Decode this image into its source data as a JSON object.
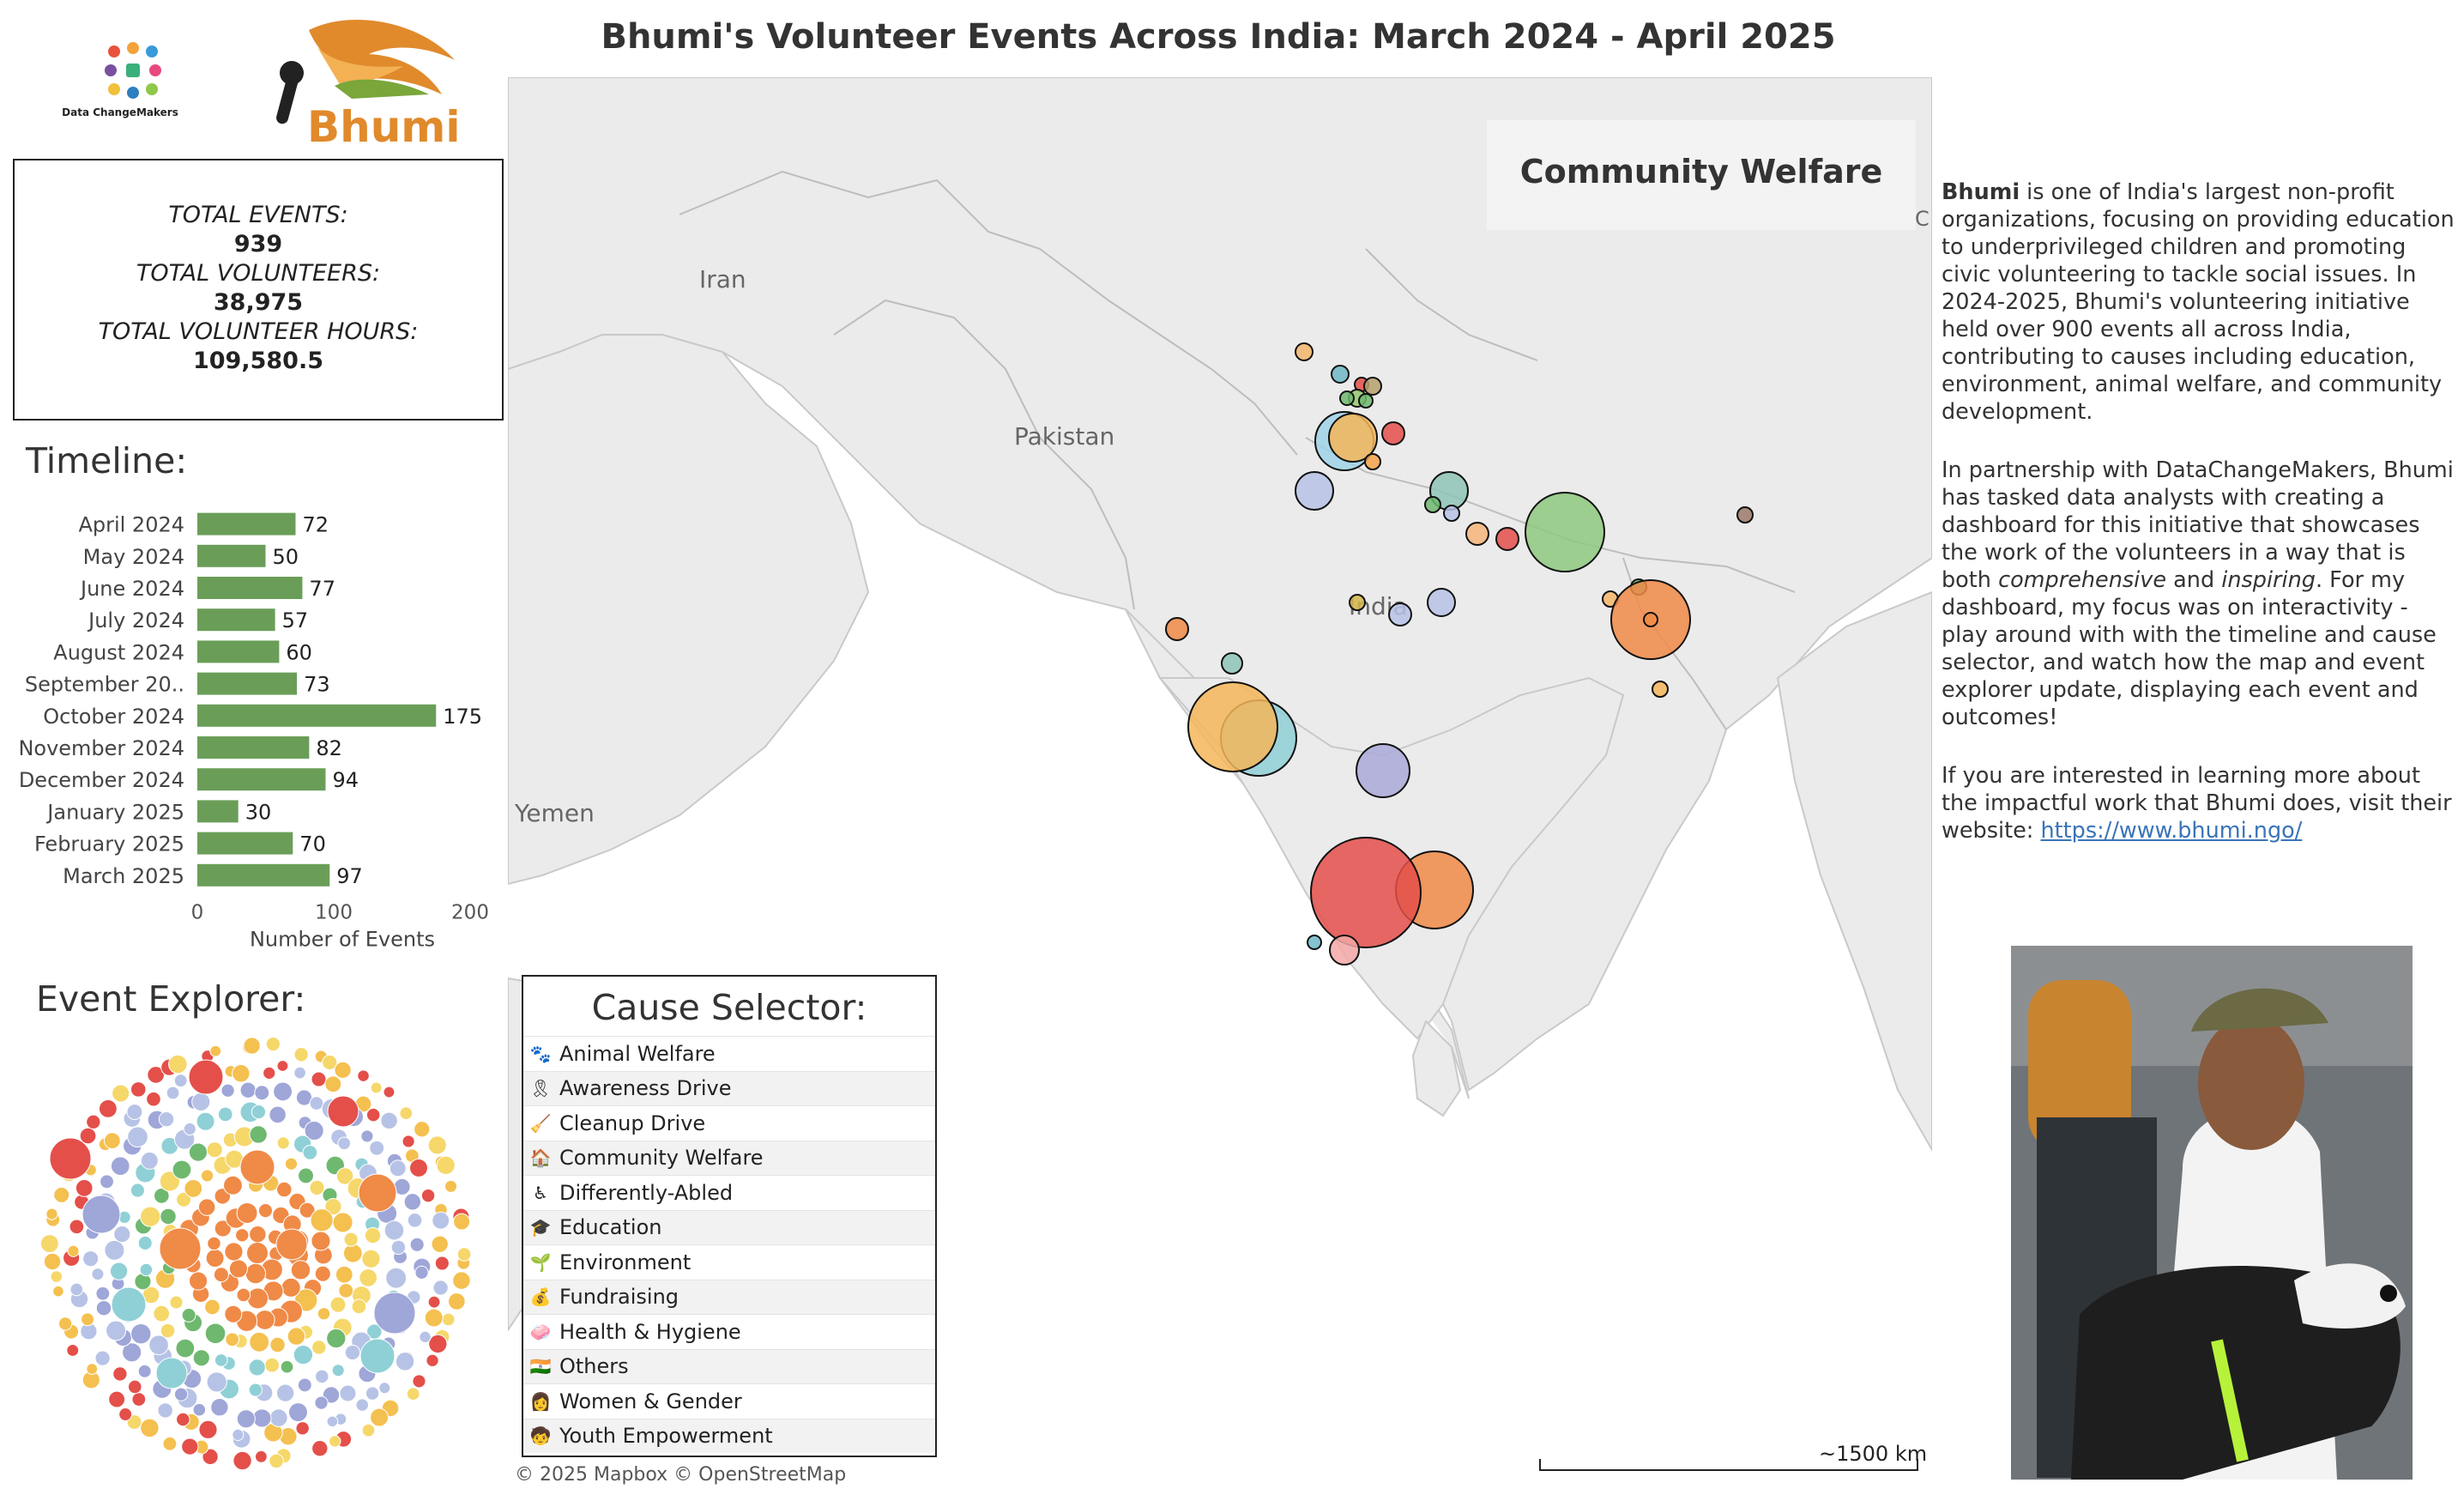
{
  "title": "Bhumi's Volunteer Events Across India: March 2024 - April 2025",
  "logos": {
    "dcm_text": "Data ChangeMakers",
    "bhumi_text": "Bhumi"
  },
  "stats": {
    "events_label": "TOTAL EVENTS:",
    "events_value": "939",
    "volunteers_label": "TOTAL VOLUNTEERS:",
    "volunteers_value": "38,975",
    "hours_label": "TOTAL VOLUNTEER HOURS:",
    "hours_value": "109,580.5"
  },
  "timeline": {
    "title": "Timeline:",
    "bar_color": "#6a9e58"
  },
  "chart_data": {
    "type": "bar",
    "orientation": "horizontal",
    "categories": [
      "April 2024",
      "May 2024",
      "June 2024",
      "July 2024",
      "August 2024",
      "September 20..",
      "October 2024",
      "November 2024",
      "December 2024",
      "January 2025",
      "February 2025",
      "March 2025"
    ],
    "values": [
      72,
      50,
      77,
      57,
      60,
      73,
      175,
      82,
      94,
      30,
      70,
      97
    ],
    "xlabel": "Number of Events",
    "ylabel": "",
    "xlim": [
      0,
      200
    ],
    "xticks": [
      0,
      100,
      200
    ],
    "grid": false
  },
  "explorer": {
    "title": "Event Explorer:",
    "colors": [
      "#f4c04f",
      "#e44f4a",
      "#b7c3e6",
      "#9fa6d8",
      "#8fd0d6",
      "#f08a47",
      "#6fb86f",
      "#f6d76a"
    ]
  },
  "map": {
    "cause_title": "Community Welfare",
    "labels": {
      "iran": "Iran",
      "pakistan": "Pakistan",
      "india": "India",
      "yemen": "Yemen",
      "edge": "C"
    },
    "credit": "© 2025 Mapbox  © OpenStreetMap",
    "scale": "~1500 km",
    "land_color": "#ebebeb",
    "water_color": "#ffffff"
  },
  "selector": {
    "title": "Cause Selector:",
    "items": [
      {
        "icon": "🐾",
        "label": "Animal Welfare"
      },
      {
        "icon": "🎗",
        "label": "Awareness Drive"
      },
      {
        "icon": "🧹",
        "label": "Cleanup Drive"
      },
      {
        "icon": "🏠",
        "label": "Community Welfare"
      },
      {
        "icon": "♿",
        "label": "Differently-Abled"
      },
      {
        "icon": "🎓",
        "label": "Education"
      },
      {
        "icon": "🌱",
        "label": "Environment"
      },
      {
        "icon": "💰",
        "label": "Fundraising"
      },
      {
        "icon": "🧼",
        "label": "Health & Hygiene"
      },
      {
        "icon": "🇮🇳",
        "label": "Others"
      },
      {
        "icon": "👩",
        "label": "Women & Gender"
      },
      {
        "icon": "🧒",
        "label": "Youth Empowerment"
      }
    ]
  },
  "description": {
    "p1_bold": "Bhumi",
    "p1": " is one of India's largest non-profit organizations, focusing on providing education to underprivileged children and promoting civic volunteering to tackle social issues. In 2024-2025, Bhumi's volunteering initiative held over 900 events all across India, contributing to causes including education, environment, animal welfare, and community development.",
    "p2a": "In partnership with DataChangeMakers, Bhumi has tasked data analysts with creating a dashboard for this initiative that showcases the work of the volunteers in a way that is both ",
    "p2_em1": "comprehensive",
    "p2b": " and ",
    "p2_em2": "inspiring",
    "p2c": ". For my dashboard, my focus was on interactivity - play around with with the timeline and cause selector, and watch how the map and event explorer update, displaying each event and outcomes!",
    "p3": "If you are interested in learning more about the impactful work that Bhumi does, visit their website: ",
    "link": "https://www.bhumi.ngo/"
  }
}
